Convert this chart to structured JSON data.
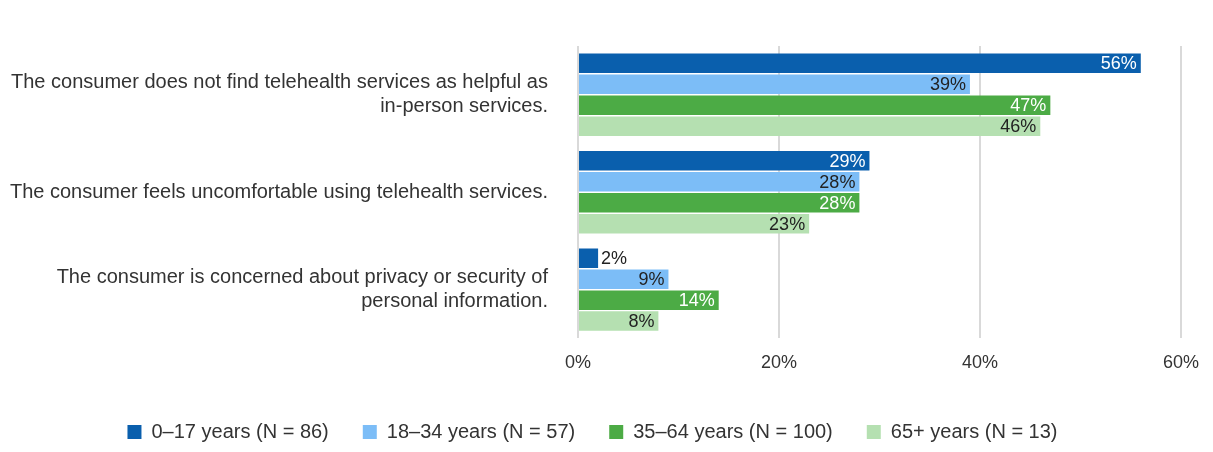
{
  "chart_data": {
    "type": "bar",
    "orientation": "horizontal",
    "categories": [
      "The consumer does not find telehealth services as helpful as in-person services.",
      "The consumer feels uncomfortable using telehealth services.",
      "The consumer is concerned about privacy or security of personal information."
    ],
    "series": [
      {
        "name": "0–17 years (N = 86)",
        "color": "#0a5fad",
        "values": [
          56,
          29,
          2
        ],
        "value_labels": [
          "56%",
          "29%",
          "2%"
        ]
      },
      {
        "name": "18–34 years (N = 57)",
        "color": "#7cbdf7",
        "values": [
          39,
          28,
          9
        ],
        "value_labels": [
          "39%",
          "28%",
          "9%"
        ]
      },
      {
        "name": "35–64 years (N = 100)",
        "color": "#4cab45",
        "values": [
          47,
          28,
          14
        ],
        "value_labels": [
          "47%",
          "28%",
          "14%"
        ]
      },
      {
        "name": "65+ years (N = 13)",
        "color": "#b5e0b1",
        "values": [
          46,
          23,
          8
        ],
        "value_labels": [
          "46%",
          "23%",
          "8%"
        ]
      }
    ],
    "xlim": [
      0,
      60
    ],
    "xticks": [
      {
        "value": 0,
        "label": "0%"
      },
      {
        "value": 20,
        "label": "20%"
      },
      {
        "value": 40,
        "label": "40%"
      },
      {
        "value": 60,
        "label": "60%"
      }
    ],
    "grid": "x",
    "legend": "bottom"
  }
}
